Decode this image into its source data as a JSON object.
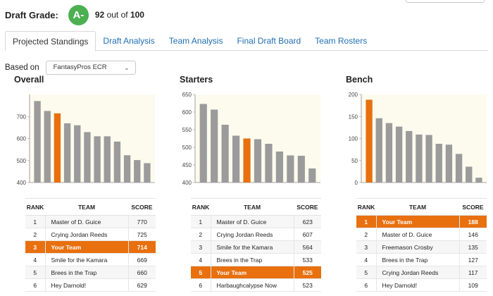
{
  "header": {
    "grade_label": "Draft Grade:",
    "grade": "A-",
    "score": "92",
    "score_mid": "out of",
    "score_max": "100",
    "grade_color": "#4caf50"
  },
  "tabs": [
    {
      "label": "Projected Standings",
      "active": true
    },
    {
      "label": "Draft Analysis",
      "active": false
    },
    {
      "label": "Team Analysis",
      "active": false
    },
    {
      "label": "Final Draft Board",
      "active": false
    },
    {
      "label": "Team Rosters",
      "active": false
    }
  ],
  "filter": {
    "label": "Based on",
    "selected": "FantasyPros ECR",
    "icon": "chevron-down-icon"
  },
  "colors": {
    "bar": "#9b9b9b",
    "highlight": "#e8700f",
    "plot_bg": "#fdfbee",
    "link": "#1f6fb2"
  },
  "table_headers": {
    "rank": "RANK",
    "team": "TEAM",
    "score": "SCORE"
  },
  "panels": [
    {
      "title": "Overall",
      "rows": [
        {
          "rank": "1",
          "team": "Master of D. Guice",
          "score": "770"
        },
        {
          "rank": "2",
          "team": "Crying Jordan Reeds",
          "score": "725"
        },
        {
          "rank": "3",
          "team": "Your Team",
          "score": "714",
          "highlight": true
        },
        {
          "rank": "4",
          "team": "Smile for the Kamara",
          "score": "669"
        },
        {
          "rank": "5",
          "team": "Brees in the Trap",
          "score": "660"
        },
        {
          "rank": "6",
          "team": "Hey Darnold!",
          "score": "629"
        }
      ]
    },
    {
      "title": "Starters",
      "rows": [
        {
          "rank": "1",
          "team": "Master of D. Guice",
          "score": "623"
        },
        {
          "rank": "2",
          "team": "Crying Jordan Reeds",
          "score": "607"
        },
        {
          "rank": "3",
          "team": "Smile for the Kamara",
          "score": "564"
        },
        {
          "rank": "4",
          "team": "Brees in the Trap",
          "score": "533"
        },
        {
          "rank": "5",
          "team": "Your Team",
          "score": "525",
          "highlight": true
        },
        {
          "rank": "6",
          "team": "Harbaughcalypse Now",
          "score": "523"
        }
      ]
    },
    {
      "title": "Bench",
      "rows": [
        {
          "rank": "1",
          "team": "Your Team",
          "score": "188",
          "highlight": true
        },
        {
          "rank": "2",
          "team": "Master of D. Guice",
          "score": "146"
        },
        {
          "rank": "3",
          "team": "Freemason Crosby",
          "score": "135"
        },
        {
          "rank": "4",
          "team": "Brees in the Trap",
          "score": "127"
        },
        {
          "rank": "5",
          "team": "Crying Jordan Reeds",
          "score": "117"
        },
        {
          "rank": "6",
          "team": "Hey Darnold!",
          "score": "109"
        }
      ]
    }
  ],
  "chart_data": [
    {
      "type": "bar",
      "title": "Overall",
      "ylim": [
        400,
        800
      ],
      "yticks": [
        "400",
        "500",
        "600",
        "700"
      ],
      "values": [
        770,
        725,
        714,
        669,
        660,
        629,
        610,
        610,
        586,
        524,
        502,
        488
      ],
      "highlight_index": 2
    },
    {
      "type": "bar",
      "title": "Starters",
      "ylim": [
        400,
        650
      ],
      "yticks": [
        "400",
        "450",
        "500",
        "550",
        "600",
        "650"
      ],
      "values": [
        623,
        607,
        564,
        533,
        525,
        523,
        510,
        488,
        477,
        476,
        440
      ],
      "highlight_index": 4
    },
    {
      "type": "bar",
      "title": "Bench",
      "ylim": [
        0,
        200
      ],
      "yticks": [
        "0",
        "50",
        "100",
        "150",
        "200"
      ],
      "values": [
        188,
        146,
        135,
        127,
        117,
        109,
        108,
        88,
        86,
        65,
        36,
        11
      ],
      "highlight_index": 0
    }
  ]
}
